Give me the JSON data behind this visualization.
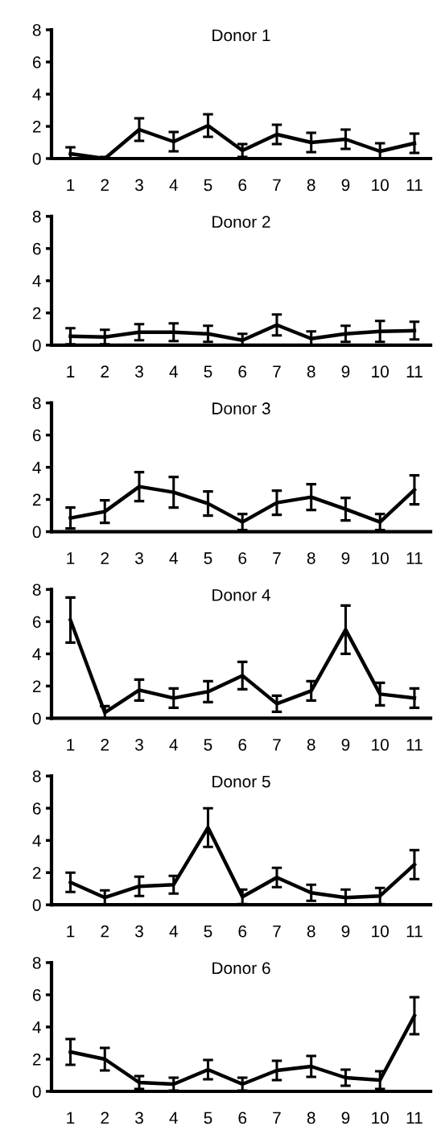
{
  "chart_data": [
    {
      "type": "line",
      "title": "Donor 1",
      "categories": [
        "1",
        "2",
        "3",
        "4",
        "5",
        "6",
        "7",
        "8",
        "9",
        "10",
        "11"
      ],
      "ylim": [
        0,
        8
      ],
      "yticks": [
        0,
        2,
        4,
        6,
        8
      ],
      "grid": false,
      "marker": "none",
      "line_style": "solid",
      "series": [
        {
          "color": "#000000",
          "values": [
            0.3,
            0.0,
            1.8,
            1.05,
            2.05,
            0.5,
            1.5,
            1.0,
            1.2,
            0.45,
            0.95
          ],
          "errors": [
            0.4,
            0.1,
            0.7,
            0.6,
            0.7,
            0.4,
            0.6,
            0.6,
            0.6,
            0.5,
            0.6
          ]
        }
      ]
    },
    {
      "type": "line",
      "title": "Donor 2",
      "categories": [
        "1",
        "2",
        "3",
        "4",
        "5",
        "6",
        "7",
        "8",
        "9",
        "10",
        "11"
      ],
      "ylim": [
        0,
        8
      ],
      "yticks": [
        0,
        2,
        4,
        6,
        8
      ],
      "grid": false,
      "marker": "none",
      "line_style": "solid",
      "series": [
        {
          "color": "#000000",
          "values": [
            0.55,
            0.5,
            0.8,
            0.8,
            0.7,
            0.3,
            1.25,
            0.4,
            0.7,
            0.85,
            0.9
          ],
          "errors": [
            0.5,
            0.45,
            0.5,
            0.55,
            0.5,
            0.4,
            0.65,
            0.45,
            0.5,
            0.65,
            0.55
          ]
        }
      ]
    },
    {
      "type": "line",
      "title": "Donor 3",
      "categories": [
        "1",
        "2",
        "3",
        "4",
        "5",
        "6",
        "7",
        "8",
        "9",
        "10",
        "11"
      ],
      "ylim": [
        0,
        8
      ],
      "yticks": [
        0,
        2,
        4,
        6,
        8
      ],
      "grid": false,
      "marker": "none",
      "line_style": "solid",
      "series": [
        {
          "color": "#000000",
          "values": [
            0.85,
            1.25,
            2.8,
            2.45,
            1.75,
            0.6,
            1.8,
            2.15,
            1.4,
            0.6,
            2.6
          ],
          "errors": [
            0.65,
            0.7,
            0.9,
            0.95,
            0.75,
            0.5,
            0.75,
            0.8,
            0.7,
            0.5,
            0.9
          ]
        }
      ]
    },
    {
      "type": "line",
      "title": "Donor 4",
      "categories": [
        "1",
        "2",
        "3",
        "4",
        "5",
        "6",
        "7",
        "8",
        "9",
        "10",
        "11"
      ],
      "ylim": [
        0,
        8
      ],
      "yticks": [
        0,
        2,
        4,
        6,
        8
      ],
      "grid": false,
      "marker": "none",
      "line_style": "solid",
      "series": [
        {
          "color": "#000000",
          "values": [
            6.1,
            0.35,
            1.75,
            1.25,
            1.65,
            2.65,
            0.9,
            1.7,
            5.5,
            1.5,
            1.25
          ],
          "errors": [
            1.4,
            0.4,
            0.65,
            0.6,
            0.65,
            0.85,
            0.5,
            0.6,
            1.5,
            0.7,
            0.6
          ]
        }
      ]
    },
    {
      "type": "line",
      "title": "Donor 5",
      "categories": [
        "1",
        "2",
        "3",
        "4",
        "5",
        "6",
        "7",
        "8",
        "9",
        "10",
        "11"
      ],
      "ylim": [
        0,
        8
      ],
      "yticks": [
        0,
        2,
        4,
        6,
        8
      ],
      "grid": false,
      "marker": "none",
      "line_style": "solid",
      "series": [
        {
          "color": "#000000",
          "values": [
            1.4,
            0.45,
            1.15,
            1.25,
            4.8,
            0.5,
            1.7,
            0.75,
            0.45,
            0.55,
            2.5
          ],
          "errors": [
            0.6,
            0.45,
            0.6,
            0.55,
            1.2,
            0.45,
            0.6,
            0.5,
            0.5,
            0.5,
            0.9
          ]
        }
      ]
    },
    {
      "type": "line",
      "title": "Donor 6",
      "categories": [
        "1",
        "2",
        "3",
        "4",
        "5",
        "6",
        "7",
        "8",
        "9",
        "10",
        "11"
      ],
      "ylim": [
        0,
        8
      ],
      "yticks": [
        0,
        2,
        4,
        6,
        8
      ],
      "grid": false,
      "marker": "none",
      "line_style": "solid",
      "series": [
        {
          "color": "#000000",
          "values": [
            2.45,
            2.0,
            0.55,
            0.45,
            1.35,
            0.45,
            1.3,
            1.55,
            0.85,
            0.7,
            4.7
          ],
          "errors": [
            0.8,
            0.7,
            0.4,
            0.4,
            0.6,
            0.4,
            0.6,
            0.65,
            0.5,
            0.55,
            1.15
          ]
        }
      ]
    }
  ]
}
